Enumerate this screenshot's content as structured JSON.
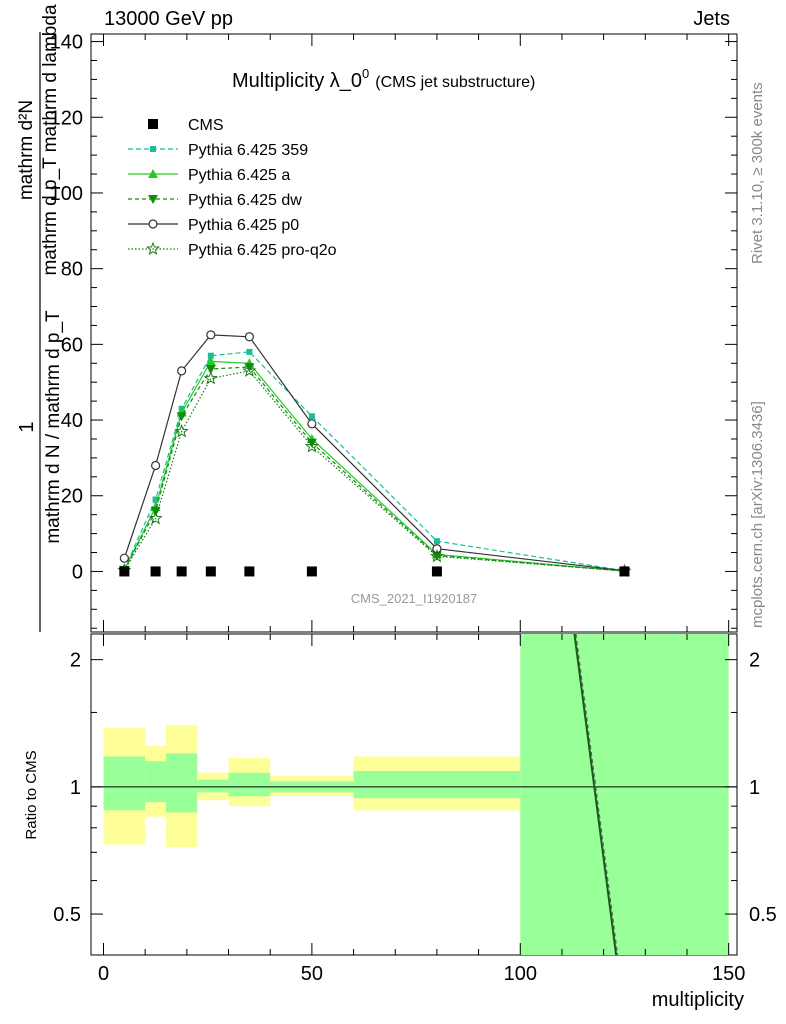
{
  "header": {
    "left": "13000 GeV pp",
    "right": "Jets"
  },
  "side_labels": {
    "rivet": "Rivet 3.1.10, ≥ 300k events",
    "mcplots": "mcplots.cern.ch [arXiv:1306.3436]"
  },
  "chart_data": [
    {
      "type": "line",
      "title": "Multiplicity λ_0",
      "title_sup": "0",
      "subtitle": "(CMS jet substructure)",
      "watermark": "CMS_2021_I1920187",
      "ylabel_numerator": "mathrm d²N",
      "ylabel_denominator": "mathrm d p_T mathrm d lambda",
      "ylabel_main_prefix": "1",
      "ylabel_main": "mathrm d N / mathrm d p_T",
      "xlim": [
        -3,
        152
      ],
      "ylim": [
        -16,
        142
      ],
      "y_ticks": [
        "0",
        "20",
        "40",
        "60",
        "80",
        "100",
        "120",
        "140"
      ],
      "x": [
        5,
        12.5,
        18.75,
        25.75,
        35,
        50,
        80,
        125
      ],
      "series": [
        {
          "name": "CMS",
          "color": "#000000",
          "marker": "square",
          "dash": "none",
          "values": [
            0,
            0,
            0,
            0,
            0,
            0,
            0,
            0
          ]
        },
        {
          "name": "Pythia 6.425 359",
          "color": "#1abc9c",
          "marker": "square-small",
          "dash": "5,3",
          "values": [
            0.6,
            19,
            43,
            57,
            58,
            41,
            8,
            0.2
          ]
        },
        {
          "name": "Pythia 6.425 a",
          "color": "#22cc22",
          "marker": "triangle-up",
          "dash": "none",
          "values": [
            0.4,
            17,
            42,
            55.5,
            55,
            35,
            4.5,
            0.1
          ]
        },
        {
          "name": "Pythia 6.425 dw",
          "color": "#0d8f0d",
          "marker": "triangle-down",
          "dash": "4,3",
          "values": [
            0.4,
            16,
            41,
            53.5,
            54,
            34,
            4.2,
            0.1
          ]
        },
        {
          "name": "Pythia 6.425 p0",
          "color": "#333333",
          "marker": "circle-open",
          "dash": "none",
          "values": [
            3.5,
            28,
            53,
            62.5,
            62,
            39,
            6,
            0.2
          ]
        },
        {
          "name": "Pythia 6.425 pro-q2o",
          "color": "#1a7a1a",
          "marker": "star-open",
          "dash": "1.5,2",
          "values": [
            0.3,
            14,
            37,
            51,
            53,
            33,
            4,
            0.1
          ]
        }
      ]
    },
    {
      "type": "area",
      "ylabel": "Ratio to CMS",
      "xlabel": "multiplicity",
      "scale": "log",
      "ylim": [
        0.4,
        2.3
      ],
      "y_ticks": [
        "0.5",
        "1",
        "2"
      ],
      "x_ticks": [
        "0",
        "50",
        "100",
        "150"
      ],
      "bins": [
        {
          "xlo": 0,
          "xhi": 10,
          "stat": [
            0.88,
            1.18
          ],
          "syst": [
            0.73,
            1.38
          ]
        },
        {
          "xlo": 10,
          "xhi": 15,
          "stat": [
            0.92,
            1.15
          ],
          "syst": [
            0.85,
            1.25
          ]
        },
        {
          "xlo": 15,
          "xhi": 22.5,
          "stat": [
            0.87,
            1.2
          ],
          "syst": [
            0.72,
            1.4
          ]
        },
        {
          "xlo": 22.5,
          "xhi": 30,
          "stat": [
            0.97,
            1.04
          ],
          "syst": [
            0.93,
            1.08
          ]
        },
        {
          "xlo": 30,
          "xhi": 40,
          "stat": [
            0.95,
            1.08
          ],
          "syst": [
            0.9,
            1.17
          ]
        },
        {
          "xlo": 40,
          "xhi": 60,
          "stat": [
            0.97,
            1.03
          ],
          "syst": [
            0.95,
            1.06
          ]
        },
        {
          "xlo": 60,
          "xhi": 100,
          "stat": [
            0.94,
            1.09
          ],
          "syst": [
            0.88,
            1.18
          ]
        },
        {
          "xlo": 100,
          "xhi": 150,
          "stat": [
            0.4,
            2.3
          ],
          "syst": [
            0.4,
            2.3
          ]
        }
      ],
      "ratio_line": {
        "x": [
          113,
          123
        ],
        "values": [
          2.3,
          0.4
        ]
      }
    }
  ],
  "colors": {
    "stat_band": "#99ff99",
    "syst_band": "#ffff99"
  }
}
